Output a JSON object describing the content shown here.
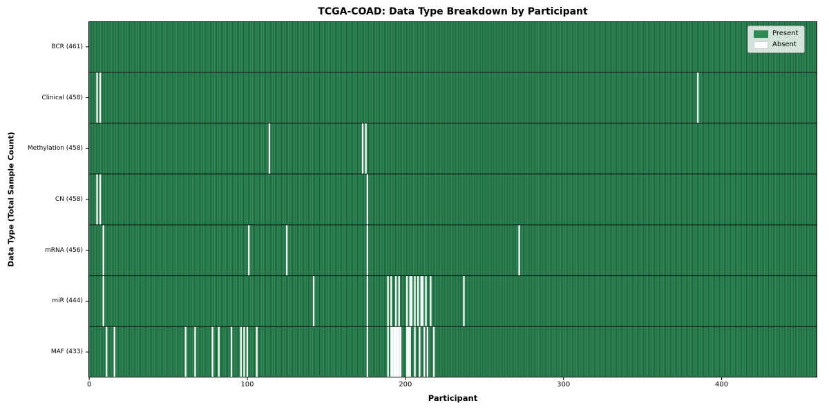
{
  "title": "TCGA-COAD: Data Type Breakdown by Participant",
  "xlabel": "Participant",
  "ylabel": "Data Type (Total Sample Count)",
  "legend": {
    "present_label": "Present",
    "absent_label": "Absent"
  },
  "colors": {
    "present": "#2e8b57",
    "present_edge": "#16412a",
    "absent": "#ffffff",
    "separator": "#111111",
    "spine": "#000000"
  },
  "chart_data": {
    "type": "heatmap",
    "title": "TCGA-COAD: Data Type Breakdown by Participant",
    "xlabel": "Participant",
    "ylabel": "Data Type (Total Sample Count)",
    "legend_entries": [
      "Present",
      "Absent"
    ],
    "legend_position": "upper right",
    "n_participants": 461,
    "xlim": [
      0,
      461
    ],
    "x_ticks": [
      0,
      100,
      200,
      300,
      400
    ],
    "rows": [
      {
        "label": "BCR (461)",
        "data_type": "BCR",
        "present_count": 461,
        "absent_count": 0,
        "absent_participants": []
      },
      {
        "label": "Clinical (458)",
        "data_type": "Clinical",
        "present_count": 458,
        "absent_count": 3,
        "absent_participants": [
          5,
          7,
          385
        ]
      },
      {
        "label": "Methylation (458)",
        "data_type": "Methylation",
        "present_count": 458,
        "absent_count": 3,
        "absent_participants": [
          114,
          173,
          175
        ]
      },
      {
        "label": "CN (458)",
        "data_type": "CN",
        "present_count": 458,
        "absent_count": 3,
        "absent_participants": [
          5,
          7,
          176
        ]
      },
      {
        "label": "mRNA (456)",
        "data_type": "mRNA",
        "present_count": 456,
        "absent_count": 5,
        "absent_participants": [
          9,
          101,
          125,
          176,
          272
        ]
      },
      {
        "label": "miR (444)",
        "data_type": "miR",
        "present_count": 444,
        "absent_count": 17,
        "absent_participants": [
          9,
          142,
          176,
          189,
          191,
          194,
          196,
          201,
          203,
          204,
          206,
          208,
          210,
          211,
          213,
          216,
          237
        ]
      },
      {
        "label": "MAF (433)",
        "data_type": "MAF",
        "present_count": 433,
        "absent_count": 28,
        "absent_participants": [
          11,
          16,
          61,
          67,
          78,
          82,
          90,
          96,
          98,
          100,
          106,
          176,
          189,
          191,
          192,
          193,
          194,
          195,
          196,
          197,
          201,
          202,
          203,
          206,
          209,
          212,
          214,
          218
        ]
      }
    ]
  }
}
